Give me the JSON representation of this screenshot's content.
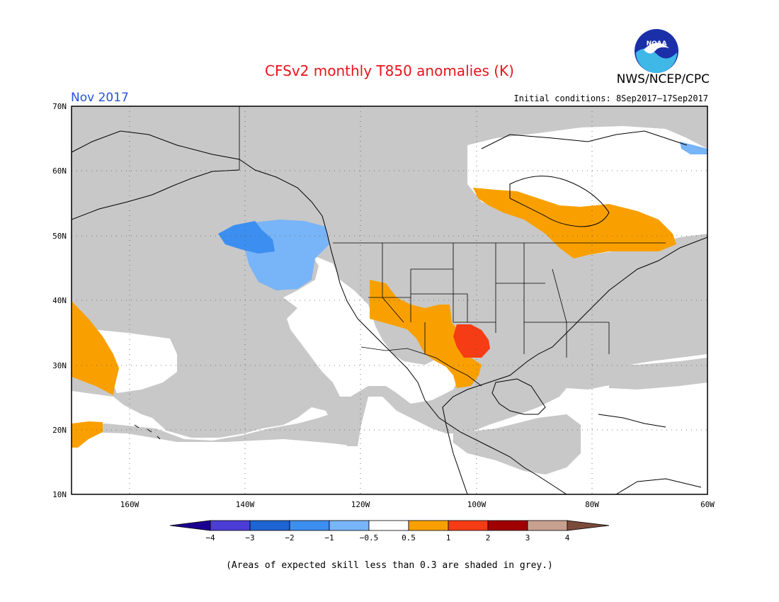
{
  "title": "CFSv2 monthly T850 anomalies (K)",
  "agency": "NWS/NCEP/CPC",
  "logo_text": "NOAA",
  "month": "Nov 2017",
  "initial_conditions": "Initial conditions: 8Sep2017–17Sep2017",
  "footnote": "(Areas of expected skill less than 0.3 are shaded in grey.)",
  "colors": {
    "grey_low_skill": "#c8c8c8",
    "minus4_below": "#1a0090",
    "minus4_minus3": "#4c3dd6",
    "minus3_minus2": "#1e64d2",
    "minus2_minus1": "#3c8ff0",
    "minus1_minus05": "#78b4f8",
    "neutral": "#ffffff",
    "p05_1": "#f9a000",
    "p1_2": "#f53c14",
    "p2_3": "#a00000",
    "p3_4": "#c8a090",
    "above4": "#7a4a3a"
  },
  "map": {
    "lat_labels": [
      "70N",
      "60N",
      "50N",
      "40N",
      "30N",
      "20N",
      "10N"
    ],
    "lon_labels": [
      "160W",
      "140W",
      "120W",
      "100W",
      "80W",
      "60W"
    ]
  },
  "colorbar": {
    "labels": [
      "−4",
      "−3",
      "−2",
      "−1",
      "−0.5",
      "0.5",
      "1",
      "2",
      "3",
      "4"
    ]
  }
}
